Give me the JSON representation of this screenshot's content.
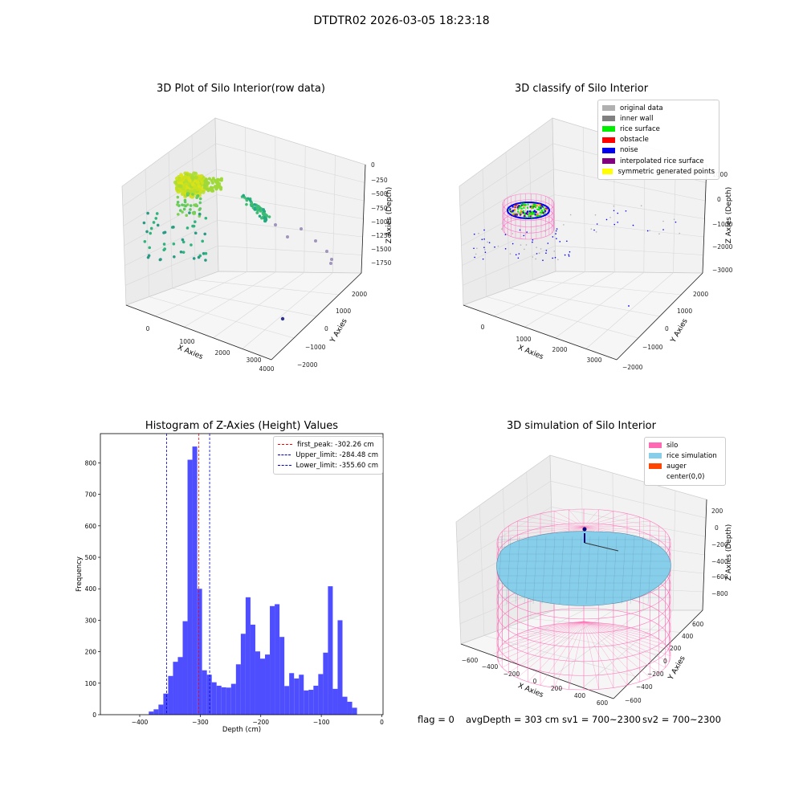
{
  "suptitle": "DTDTR02 2026-03-05 18:23:18",
  "footer": {
    "flag": "flag = 0",
    "avgdepth": "avgDepth = 303 cm",
    "sv1": "sv1 = 700~2300",
    "sv2": "sv2 = 700~2300"
  },
  "chart_data": [
    {
      "type": "scatter",
      "projection": "3d",
      "title": "3D Plot of Silo Interior(row data)",
      "xlabel": "X Axies",
      "ylabel": "Y Axies",
      "zlabel": "Z Axies (Depth)",
      "xticks": [
        "0",
        "1000",
        "2000",
        "3000",
        "4000"
      ],
      "yticks": [
        "−2000",
        "−1000",
        "0",
        "1000",
        "2000"
      ],
      "zticks": [
        "0",
        "−250",
        "−500",
        "−750",
        "−1000",
        "−1250",
        "−1500",
        "−1750"
      ],
      "colormap": "viridis",
      "grid": true
    },
    {
      "type": "scatter",
      "projection": "3d",
      "title": "3D classify of Silo Interior",
      "xlabel": "X Axies",
      "ylabel": "Y Axies",
      "zlabel": "Z Axies (Depth)",
      "xticks": [
        "0",
        "1000",
        "2000",
        "3000"
      ],
      "yticks": [
        "−2000",
        "−1000",
        "0",
        "1000",
        "2000"
      ],
      "zticks": [
        "1000",
        "0",
        "−1000",
        "−2000",
        "−3000"
      ],
      "legend_position": "top-right",
      "legend": [
        {
          "label": "original data",
          "color": "#b0b0b0"
        },
        {
          "label": "inner wall",
          "color": "#808080"
        },
        {
          "label": "rice surface",
          "color": "#00ee00"
        },
        {
          "label": "obstacle",
          "color": "#ff0000"
        },
        {
          "label": "noise",
          "color": "#0000ee"
        },
        {
          "label": "interpolated rice surface",
          "color": "#800080"
        },
        {
          "label": "symmetric generated points",
          "color": "#ffff00"
        }
      ],
      "grid": true
    },
    {
      "type": "bar",
      "title": "Histogram of Z-Axies (Height) Values",
      "xlabel": "Depth (cm)",
      "ylabel": "Frequency",
      "xlim": [
        -465,
        2
      ],
      "ylim": [
        0,
        893
      ],
      "xticks": [
        -400,
        -300,
        -200,
        -100,
        0
      ],
      "xtick_labels": [
        "−400",
        "−300",
        "−200",
        "−100",
        "0"
      ],
      "yticks": [
        0,
        100,
        200,
        300,
        400,
        500,
        600,
        700,
        800
      ],
      "bin_width": 8,
      "bins_start": -385,
      "values": [
        10,
        17,
        32,
        67,
        123,
        168,
        183,
        297,
        810,
        852,
        400,
        141,
        127,
        103,
        92,
        87,
        86,
        98,
        160,
        257,
        373,
        286,
        201,
        178,
        191,
        345,
        351,
        247,
        91,
        132,
        115,
        127,
        77,
        79,
        92,
        129,
        197,
        408,
        82,
        300,
        57,
        41,
        22
      ],
      "bar_color": "#4444ff",
      "vlines": [
        {
          "label": "first_peak: -302.26 cm",
          "x": -302.26,
          "color": "#ff0000"
        },
        {
          "label": "Upper_limit: -284.48 cm",
          "x": -284.48,
          "color": "#0000cc"
        },
        {
          "label": "Lower_limit: -355.60 cm",
          "x": -355.6,
          "color": "#0000cc"
        }
      ],
      "legend_position": "top-right"
    },
    {
      "type": "surface",
      "projection": "3d",
      "title": "3D simulation of Silo Interior",
      "xlabel": "X Axies",
      "ylabel": "Y Axies",
      "zlabel": "Z Axies (Depth)",
      "xticks": [
        "−600",
        "−400",
        "−200",
        "0",
        "200",
        "400",
        "600"
      ],
      "yticks": [
        "−600",
        "−400",
        "−200",
        "0",
        "200",
        "400",
        "600"
      ],
      "zticks": [
        "200",
        "0",
        "−200",
        "−400",
        "−600",
        "−800"
      ],
      "legend_position": "top-right",
      "legend": [
        {
          "label": "silo",
          "color": "#ff69b4"
        },
        {
          "label": "rice simulation",
          "color": "#87ceeb"
        },
        {
          "label": "auger",
          "color": "#ff4500"
        },
        {
          "label": "center(0,0)",
          "color": ""
        }
      ]
    }
  ]
}
